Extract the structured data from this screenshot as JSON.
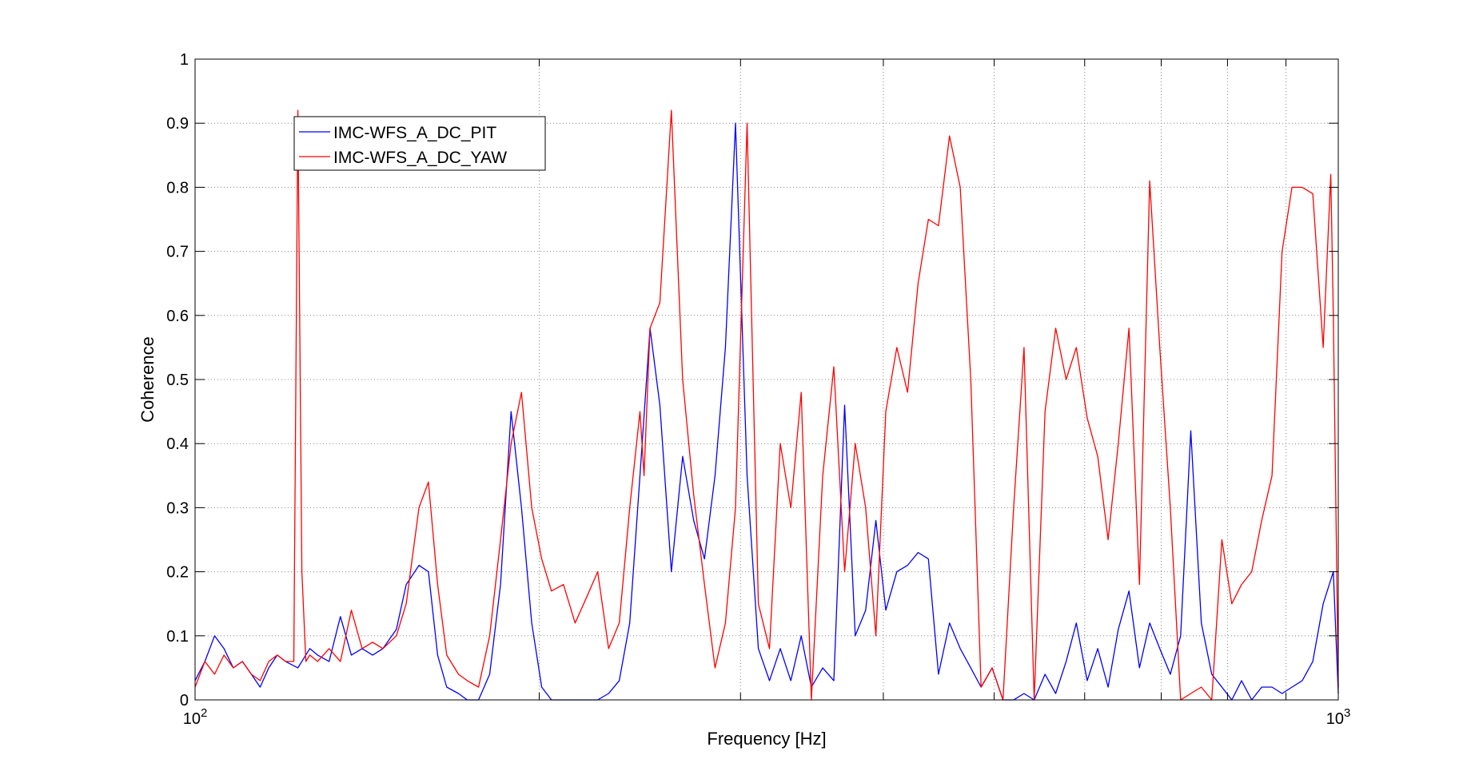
{
  "chart_data": {
    "type": "line",
    "title": "",
    "xlabel": "Frequency [Hz]",
    "ylabel": "Coherence",
    "xscale": "log",
    "xlim": [
      100,
      1000
    ],
    "ylim": [
      0,
      1
    ],
    "grid": true,
    "legend_position": "top-left",
    "x_ticks": [
      {
        "value": 100,
        "base": "10",
        "exp": "2"
      },
      {
        "value": 1000,
        "base": "10",
        "exp": "3"
      }
    ],
    "y_ticks": [
      "0",
      "0.1",
      "0.2",
      "0.3",
      "0.4",
      "0.5",
      "0.6",
      "0.7",
      "0.8",
      "0.9",
      "1"
    ],
    "series": [
      {
        "name": "IMC-WFS_A_DC_PIT",
        "color": "#0000ff",
        "x": [
          100,
          102,
          104,
          106,
          108,
          110,
          112,
          114,
          116,
          118,
          120,
          123,
          126,
          128,
          131,
          134,
          137,
          140,
          143,
          146,
          150,
          153,
          157,
          160,
          163,
          166,
          170,
          173,
          177,
          181,
          185,
          189,
          193,
          197,
          201,
          205,
          210,
          215,
          220,
          225,
          230,
          235,
          240,
          245,
          250,
          255,
          261,
          267,
          273,
          279,
          285,
          291,
          297,
          304,
          311,
          318,
          325,
          332,
          339,
          346,
          354,
          362,
          370,
          378,
          386,
          394,
          402,
          411,
          420,
          429,
          438,
          447,
          457,
          467,
          477,
          487,
          498,
          509,
          520,
          531,
          542,
          554,
          566,
          578,
          590,
          603,
          616,
          629,
          642,
          656,
          670,
          684,
          698,
          713,
          728,
          743,
          759,
          775,
          791,
          807,
          823,
          840,
          857,
          875,
          893,
          911,
          930,
          950,
          970,
          990,
          1000
        ],
        "y": [
          0.03,
          0.06,
          0.1,
          0.08,
          0.05,
          0.06,
          0.04,
          0.02,
          0.05,
          0.07,
          0.06,
          0.05,
          0.08,
          0.07,
          0.06,
          0.13,
          0.07,
          0.08,
          0.07,
          0.08,
          0.11,
          0.18,
          0.21,
          0.2,
          0.07,
          0.02,
          0.01,
          0.0,
          0.0,
          0.04,
          0.18,
          0.45,
          0.3,
          0.12,
          0.02,
          0.0,
          0.0,
          0.0,
          0.0,
          0.0,
          0.01,
          0.03,
          0.12,
          0.35,
          0.58,
          0.46,
          0.2,
          0.38,
          0.28,
          0.22,
          0.35,
          0.55,
          0.9,
          0.35,
          0.08,
          0.03,
          0.08,
          0.03,
          0.1,
          0.02,
          0.05,
          0.03,
          0.46,
          0.1,
          0.14,
          0.28,
          0.14,
          0.2,
          0.21,
          0.23,
          0.22,
          0.04,
          0.12,
          0.08,
          0.05,
          0.02,
          0.05,
          0.0,
          0.0,
          0.01,
          0.0,
          0.04,
          0.01,
          0.06,
          0.12,
          0.03,
          0.08,
          0.02,
          0.11,
          0.17,
          0.05,
          0.12,
          0.08,
          0.04,
          0.1,
          0.42,
          0.12,
          0.04,
          0.02,
          0.0,
          0.03,
          0.0,
          0.02,
          0.02,
          0.01,
          0.02,
          0.03,
          0.06,
          0.15,
          0.2,
          0.01
        ]
      },
      {
        "name": "IMC-WFS_A_DC_YAW",
        "color": "#ff0000",
        "x": [
          100,
          102,
          104,
          106,
          108,
          110,
          112,
          114,
          116,
          118,
          120,
          122,
          123,
          124,
          125,
          126,
          128,
          131,
          134,
          137,
          140,
          143,
          146,
          150,
          153,
          157,
          160,
          163,
          166,
          170,
          173,
          177,
          181,
          185,
          189,
          193,
          197,
          201,
          205,
          210,
          215,
          220,
          225,
          230,
          235,
          240,
          245,
          247,
          250,
          255,
          261,
          267,
          273,
          279,
          285,
          291,
          297,
          304,
          311,
          318,
          325,
          332,
          339,
          346,
          354,
          362,
          370,
          378,
          386,
          394,
          402,
          411,
          420,
          429,
          438,
          447,
          457,
          467,
          477,
          487,
          498,
          509,
          520,
          531,
          542,
          554,
          566,
          578,
          590,
          603,
          616,
          629,
          642,
          656,
          670,
          684,
          698,
          713,
          728,
          743,
          759,
          775,
          791,
          807,
          823,
          840,
          857,
          875,
          893,
          911,
          930,
          950,
          970,
          985,
          990,
          1000
        ],
        "y": [
          0.02,
          0.06,
          0.04,
          0.07,
          0.05,
          0.06,
          0.04,
          0.03,
          0.06,
          0.07,
          0.06,
          0.06,
          0.92,
          0.2,
          0.06,
          0.07,
          0.06,
          0.08,
          0.06,
          0.14,
          0.08,
          0.09,
          0.08,
          0.1,
          0.15,
          0.3,
          0.34,
          0.18,
          0.07,
          0.04,
          0.03,
          0.02,
          0.1,
          0.25,
          0.4,
          0.48,
          0.3,
          0.22,
          0.17,
          0.18,
          0.12,
          0.16,
          0.2,
          0.08,
          0.12,
          0.3,
          0.45,
          0.35,
          0.58,
          0.62,
          0.92,
          0.5,
          0.32,
          0.18,
          0.05,
          0.12,
          0.3,
          0.9,
          0.15,
          0.08,
          0.4,
          0.3,
          0.48,
          0.0,
          0.35,
          0.52,
          0.2,
          0.4,
          0.3,
          0.1,
          0.45,
          0.55,
          0.48,
          0.65,
          0.75,
          0.74,
          0.88,
          0.8,
          0.5,
          0.02,
          0.05,
          0.0,
          0.3,
          0.55,
          0.0,
          0.45,
          0.58,
          0.5,
          0.55,
          0.44,
          0.38,
          0.25,
          0.4,
          0.58,
          0.18,
          0.81,
          0.55,
          0.3,
          0.0,
          0.01,
          0.02,
          0.0,
          0.25,
          0.15,
          0.18,
          0.2,
          0.28,
          0.35,
          0.7,
          0.8,
          0.8,
          0.79,
          0.55,
          0.82,
          0.6,
          0.02
        ]
      }
    ]
  }
}
